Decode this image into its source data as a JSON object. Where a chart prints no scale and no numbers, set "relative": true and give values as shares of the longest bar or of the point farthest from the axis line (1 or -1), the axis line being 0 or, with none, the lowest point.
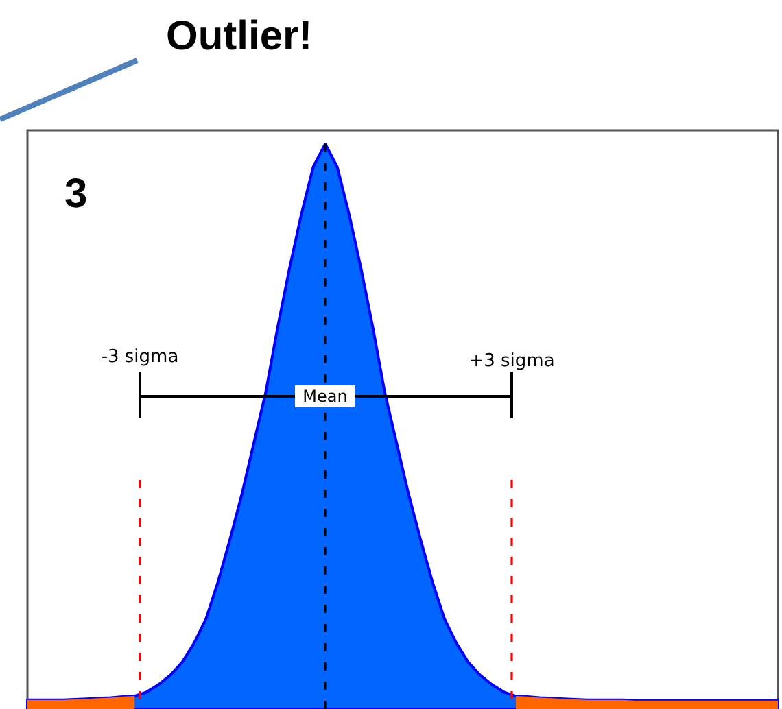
{
  "chart_data": {
    "type": "area",
    "relative": true,
    "categories": [
      null,
      null,
      null,
      null,
      null,
      null,
      null,
      null,
      null,
      null,
      null,
      null,
      null,
      null,
      null,
      null,
      null,
      null,
      null,
      null,
      null,
      null,
      null,
      null,
      null,
      null,
      null,
      null,
      null,
      null,
      null,
      null,
      null,
      null,
      null,
      null,
      null,
      null,
      null,
      null,
      null,
      null,
      null,
      null,
      null,
      null,
      null,
      null,
      null,
      null,
      null,
      null,
      null,
      null,
      null,
      null,
      null,
      null,
      null,
      null,
      null,
      null,
      null,
      null
    ],
    "annotations": [
      "Outlier!",
      "3",
      "-3 sigma",
      "Mean",
      "+3 sigma"
    ],
    "series": [
      {
        "color": "#0066ff",
        "values": [
          0.016,
          0.016,
          0.016,
          0.016,
          0.017,
          0.018,
          0.019,
          0.02,
          0.022,
          0.023,
          0.03,
          0.043,
          0.06,
          0.083,
          0.117,
          0.16,
          0.225,
          0.3,
          0.38,
          0.47,
          0.56,
          0.675,
          0.78,
          0.876,
          0.96,
          1,
          0.96,
          0.876,
          0.78,
          0.675,
          0.56,
          0.47,
          0.38,
          0.3,
          0.225,
          0.16,
          0.117,
          0.083,
          0.06,
          0.043,
          0.03,
          0.023,
          0.022,
          0.02,
          0.019,
          0.018,
          0.017,
          0.016,
          0.016,
          0.016,
          0.016,
          0.015,
          0.015,
          0.015,
          0.015,
          0.015,
          0.015,
          0.015,
          0.015,
          0.015,
          0.015,
          0.015,
          0.015,
          0.015
        ]
      },
      {
        "color": "#ff6600",
        "values": [
          0.016,
          0.016,
          0.016,
          0.016,
          0.017,
          0.018,
          0.019,
          0.02,
          0.022,
          0.023,
          null,
          null,
          null,
          null,
          null,
          null,
          null,
          null,
          null,
          null,
          null,
          null,
          null,
          null,
          null,
          null,
          null,
          null,
          null,
          null,
          null,
          null,
          null,
          null,
          null,
          null,
          null,
          null,
          null,
          null,
          null,
          0.023,
          0.022,
          0.02,
          0.019,
          0.018,
          0.017,
          0.016,
          0.016,
          0.016,
          0.016,
          0.015,
          0.015,
          0.015,
          0.015,
          0.015,
          0.015,
          0.015,
          0.015,
          0.015,
          0.015,
          0.015,
          0.015,
          0.015
        ]
      }
    ]
  }
}
